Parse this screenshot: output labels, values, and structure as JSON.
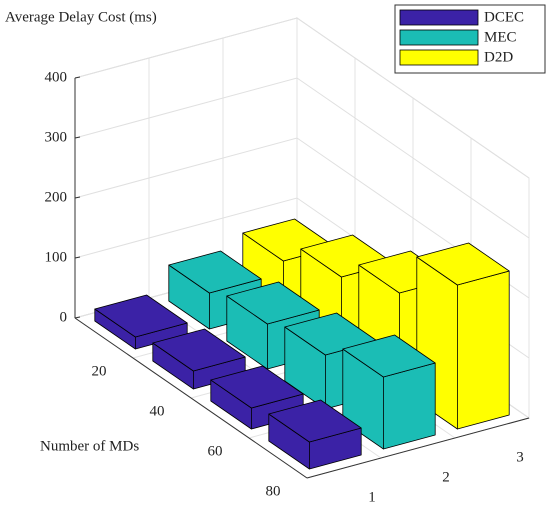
{
  "chart_data": {
    "type": "bar3d",
    "title": "Average Delay Cost (ms)",
    "x_label": "Number of MDs",
    "categories": [
      20,
      40,
      60,
      80
    ],
    "depth_ticks": [
      1,
      2,
      3
    ],
    "series": [
      {
        "name": "DCEC",
        "color": "#3b22a6",
        "values": [
          20,
          30,
          35,
          45
        ]
      },
      {
        "name": "MEC",
        "color": "#1bbdb5",
        "values": [
          60,
          75,
          90,
          120
        ]
      },
      {
        "name": "D2D",
        "color": "#ffff00",
        "values": [
          80,
          120,
          160,
          240
        ]
      }
    ],
    "ylim": [
      0,
      400
    ],
    "yticks": [
      0,
      100,
      200,
      300,
      400
    ],
    "grid": true,
    "legend": "upper right"
  }
}
